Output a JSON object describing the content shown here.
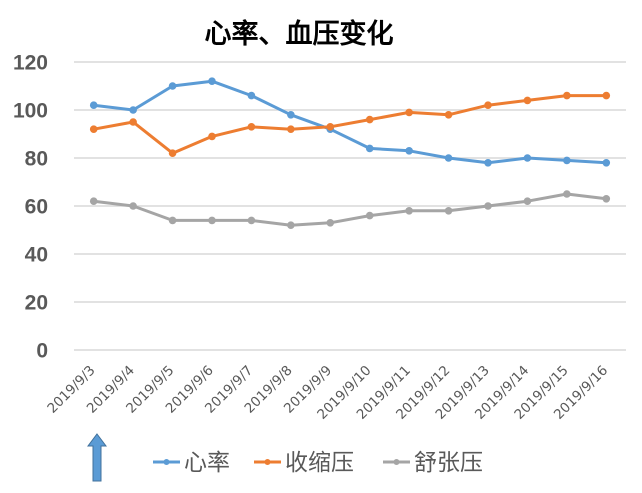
{
  "chart_data": {
    "type": "line",
    "title": "心率、血压变化",
    "xlabel": "",
    "ylabel": "",
    "ylim": [
      0,
      120
    ],
    "yticks": [
      0,
      20,
      40,
      60,
      80,
      100,
      120
    ],
    "grid": true,
    "legend_position": "bottom",
    "categories": [
      "2019/9/3",
      "2019/9/4",
      "2019/9/5",
      "2019/9/6",
      "2019/9/7",
      "2019/9/8",
      "2019/9/9",
      "2019/9/10",
      "2019/9/11",
      "2019/9/12",
      "2019/9/13",
      "2019/9/14",
      "2019/9/15",
      "2019/9/16"
    ],
    "series": [
      {
        "name": "心率",
        "color": "#5B9BD5",
        "values": [
          102,
          100,
          110,
          112,
          106,
          98,
          92,
          84,
          83,
          80,
          78,
          80,
          79,
          78
        ]
      },
      {
        "name": "收缩压",
        "color": "#ED7D31",
        "values": [
          92,
          95,
          82,
          89,
          93,
          92,
          93,
          96,
          99,
          98,
          102,
          104,
          106,
          106
        ]
      },
      {
        "name": "舒张压",
        "color": "#A5A5A5",
        "values": [
          62,
          60,
          54,
          54,
          54,
          52,
          53,
          56,
          58,
          58,
          60,
          62,
          65,
          63
        ]
      }
    ],
    "annotations": [
      {
        "type": "arrow-up",
        "color": "#5B9BD5",
        "position": "below first category"
      }
    ]
  }
}
